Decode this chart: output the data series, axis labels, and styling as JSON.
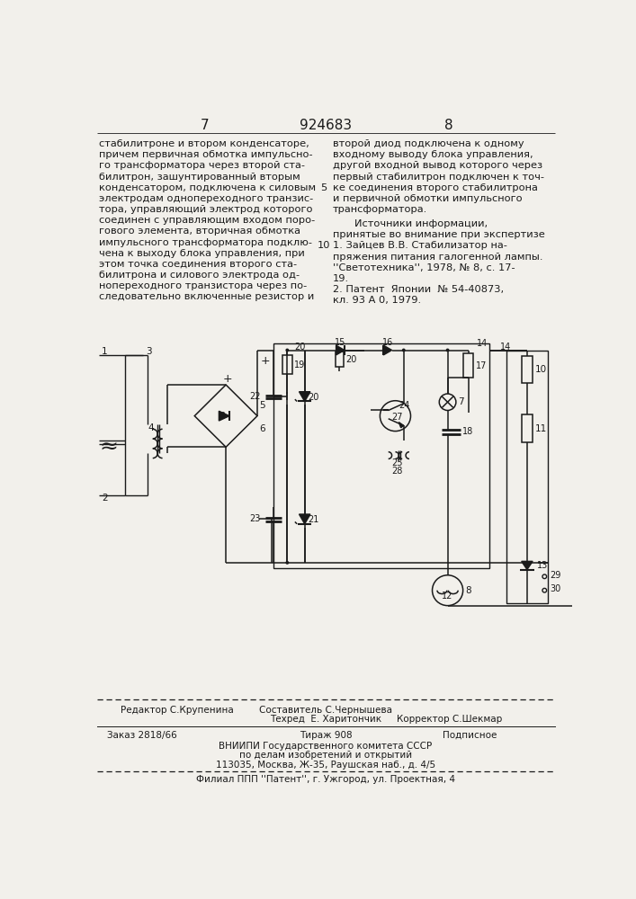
{
  "page_number_left": "7",
  "page_number_center": "924683",
  "page_number_right": "8",
  "bg_color": "#f2f0eb",
  "text_color": "#1a1a1a",
  "left_column_text": [
    "стабилитроне и втором конденсаторе,",
    "причем первичная обмотка импульсно-",
    "го трансформатора через второй ста-",
    "билитрон, зашунтированный вторым",
    "конденсатором, подключена к силовым",
    "электродам однопереходного транзис-",
    "тора, управляющий электрод которого",
    "соединен с управляющим входом поро-",
    "гового элемента, вторичная обмотка",
    "импульсного трансформатора подклю-",
    "чена к выходу блока управления, при",
    "этом точка соединения второго ста-",
    "билитрона и силового электрода од-",
    "нопереходного транзистора через по-",
    "следовательно включенные резистор и"
  ],
  "right_column_text_lines": [
    "второй диод подключена к одному",
    "входному выводу блока управления,",
    "другой входной вывод которого через",
    "первый стабилитрон подключен к точ-",
    "ке соединения второго стабилитрона",
    "и первичной обмотки импульсного",
    "трансформатора."
  ],
  "sources_header": "Источники информации,",
  "sources_subheader": "принятые во внимание при экспертизе",
  "source1": "1. Зайцев В.В. Стабилизатор на-",
  "source1b": "пряжения питания галогенной лампы.",
  "source1c": "''Светотехника'', 1978, № 8, с. 17-",
  "source1d": "19.",
  "source2": "2. Патент  Японии  № 54-40873,",
  "source2b": "кл. 93 А 0, 1979.",
  "footer_editor": "Редактор С.Крупенина",
  "footer_composer": "Составитель С.Чернышева",
  "footer_tech": "Техред  Е. Харитончик",
  "footer_corrector": "Корректор С.Шекмар",
  "footer_order": "Заказ 2818/66",
  "footer_tirage": "Тираж 908",
  "footer_subscription": "Подписное",
  "footer_vnipi": "ВНИИПИ Государственного комитета СССР",
  "footer_affairs": "по делам изобретений и открытий",
  "footer_address": "113035, Москва, Ж-35, Раушская наб., д. 4/5",
  "footer_branch": "Филиал ППП ''Патент'', г. Ужгород, ул. Проектная, 4"
}
